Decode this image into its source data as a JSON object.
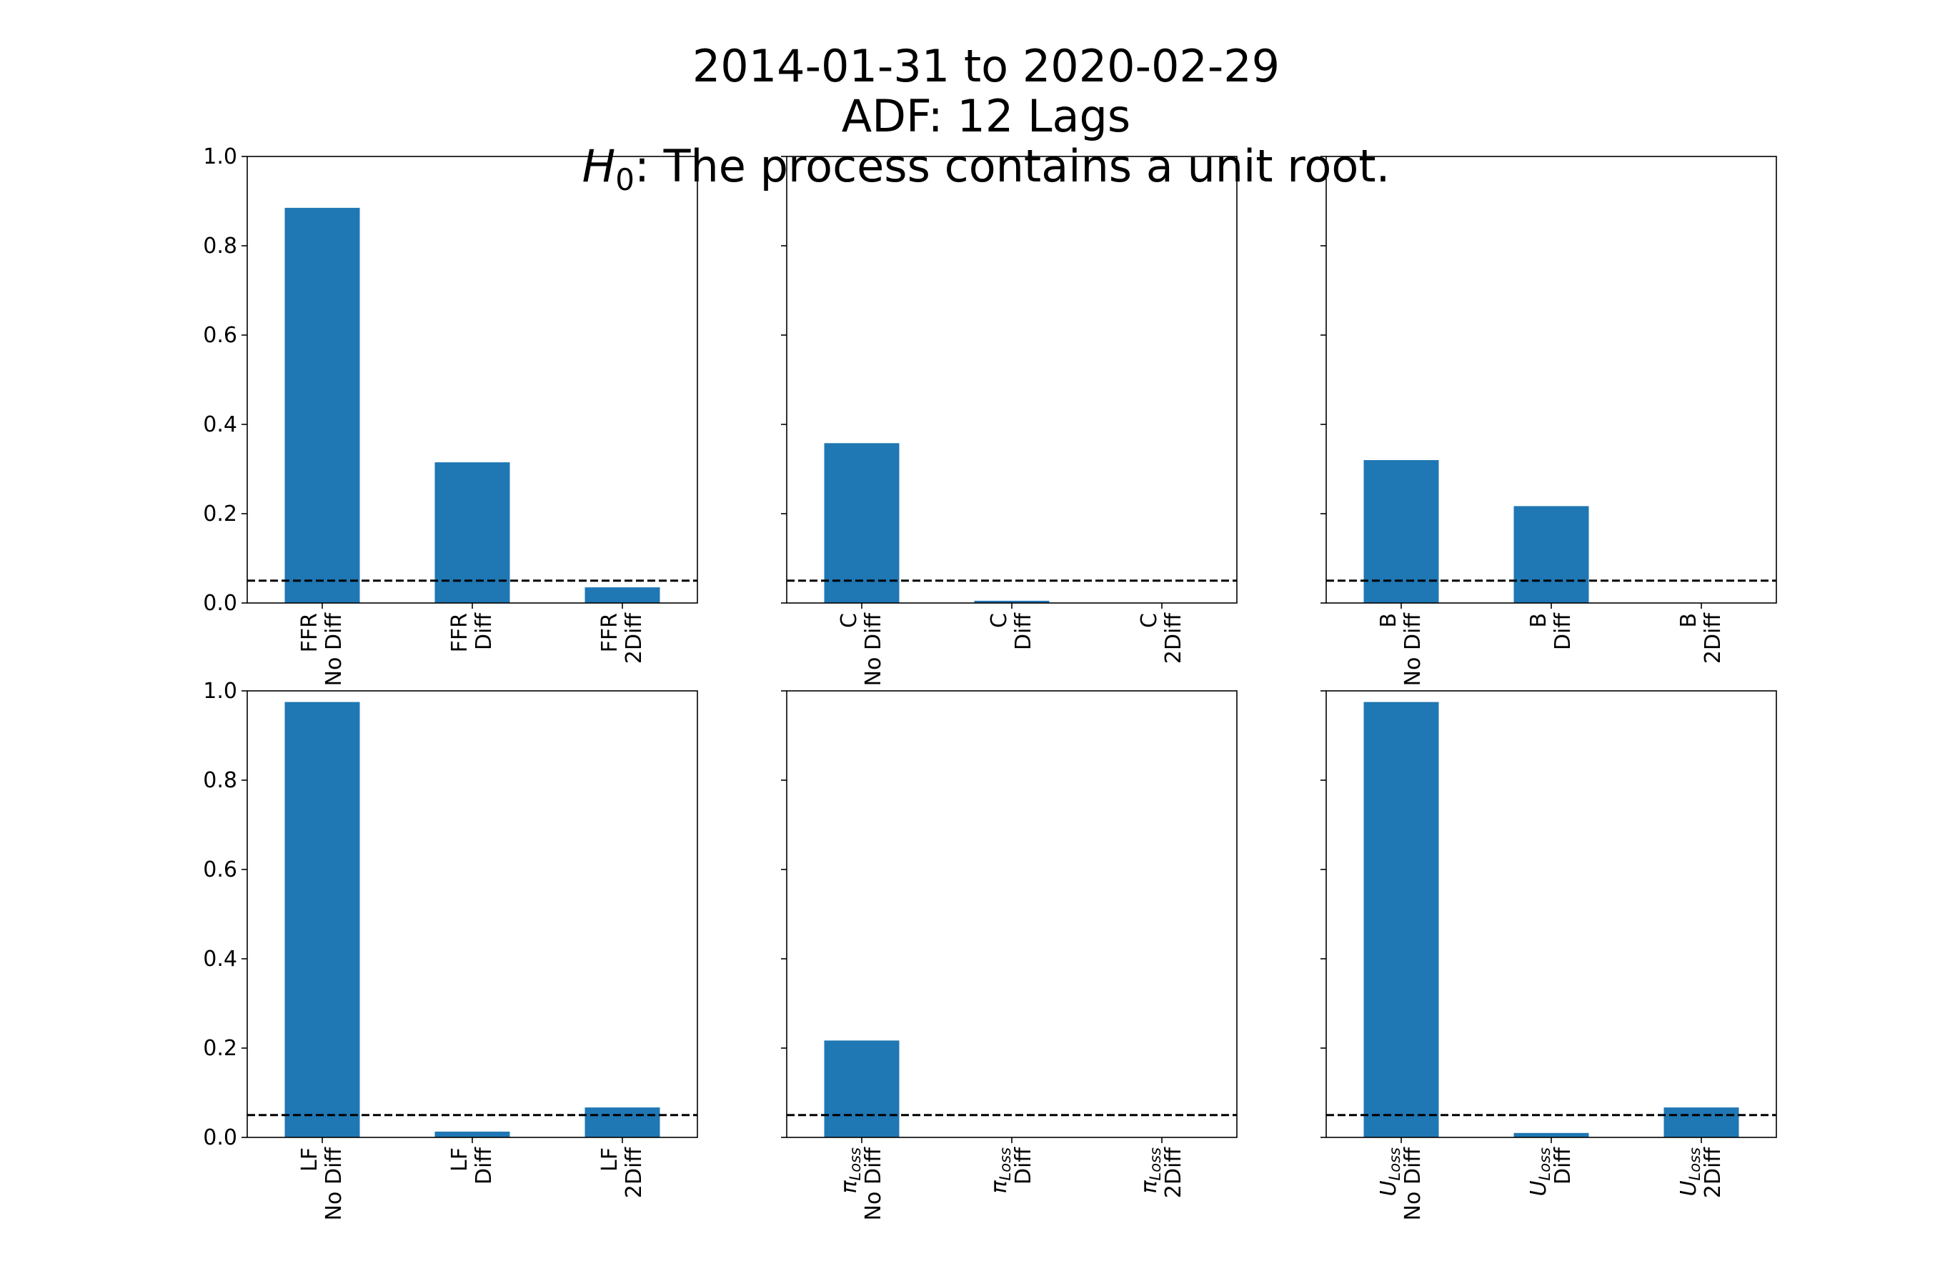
{
  "figure": {
    "title_lines": [
      "2014-01-31 to 2020-02-29",
      "ADF: 12 Lags"
    ],
    "hypothesis_symbol": "H",
    "hypothesis_subscript": "0",
    "hypothesis_text": " The process contains a unit root."
  },
  "chart_data": [
    {
      "type": "bar",
      "categories": [
        {
          "base": "FFR",
          "sub": "",
          "line2": "No Diff"
        },
        {
          "base": "FFR",
          "sub": "",
          "line2": "Diff"
        },
        {
          "base": "FFR",
          "sub": "",
          "line2": "2Diff"
        }
      ],
      "values": [
        0.885,
        0.315,
        0.035
      ],
      "ylim": [
        0,
        1.0
      ],
      "yticks": [
        "0.0",
        "0.2",
        "0.4",
        "0.6",
        "0.8",
        "1.0"
      ],
      "threshold": 0.05,
      "show_ytick_labels": true
    },
    {
      "type": "bar",
      "categories": [
        {
          "base": "C",
          "sub": "",
          "line2": "No Diff"
        },
        {
          "base": "C",
          "sub": "",
          "line2": "Diff"
        },
        {
          "base": "C",
          "sub": "",
          "line2": "2Diff"
        }
      ],
      "values": [
        0.358,
        0.005,
        0.0
      ],
      "ylim": [
        0,
        1.0
      ],
      "yticks": [
        "0.0",
        "0.2",
        "0.4",
        "0.6",
        "0.8",
        "1.0"
      ],
      "threshold": 0.05,
      "show_ytick_labels": false
    },
    {
      "type": "bar",
      "categories": [
        {
          "base": "B",
          "sub": "",
          "line2": "No Diff"
        },
        {
          "base": "B",
          "sub": "",
          "line2": "Diff"
        },
        {
          "base": "B",
          "sub": "",
          "line2": "2Diff"
        }
      ],
      "values": [
        0.32,
        0.217,
        0.0
      ],
      "ylim": [
        0,
        1.0
      ],
      "yticks": [
        "0.0",
        "0.2",
        "0.4",
        "0.6",
        "0.8",
        "1.0"
      ],
      "threshold": 0.05,
      "show_ytick_labels": false
    },
    {
      "type": "bar",
      "categories": [
        {
          "base": "LF",
          "sub": "",
          "line2": "No Diff"
        },
        {
          "base": "LF",
          "sub": "",
          "line2": "Diff"
        },
        {
          "base": "LF",
          "sub": "",
          "line2": "2Diff"
        }
      ],
      "values": [
        0.975,
        0.013,
        0.067
      ],
      "ylim": [
        0,
        1.0
      ],
      "yticks": [
        "0.0",
        "0.2",
        "0.4",
        "0.6",
        "0.8",
        "1.0"
      ],
      "threshold": 0.05,
      "show_ytick_labels": true
    },
    {
      "type": "bar",
      "categories": [
        {
          "base": "π",
          "sub": "Loss",
          "line2": "No Diff"
        },
        {
          "base": "π",
          "sub": "Loss",
          "line2": "Diff"
        },
        {
          "base": "π",
          "sub": "Loss",
          "line2": "2Diff"
        }
      ],
      "values": [
        0.217,
        0.0,
        0.0
      ],
      "ylim": [
        0,
        1.0
      ],
      "yticks": [
        "0.0",
        "0.2",
        "0.4",
        "0.6",
        "0.8",
        "1.0"
      ],
      "threshold": 0.05,
      "show_ytick_labels": false
    },
    {
      "type": "bar",
      "categories": [
        {
          "base": "U",
          "sub": "Loss",
          "line2": "No Diff"
        },
        {
          "base": "U",
          "sub": "Loss",
          "line2": "Diff"
        },
        {
          "base": "U",
          "sub": "Loss",
          "line2": "2Diff"
        }
      ],
      "values": [
        0.975,
        0.01,
        0.067
      ],
      "ylim": [
        0,
        1.0
      ],
      "yticks": [
        "0.0",
        "0.2",
        "0.4",
        "0.6",
        "0.8",
        "1.0"
      ],
      "threshold": 0.05,
      "show_ytick_labels": false
    }
  ],
  "colors": {
    "bar": "#1f77b4",
    "threshold_line": "#000000",
    "axes": "#000000"
  }
}
